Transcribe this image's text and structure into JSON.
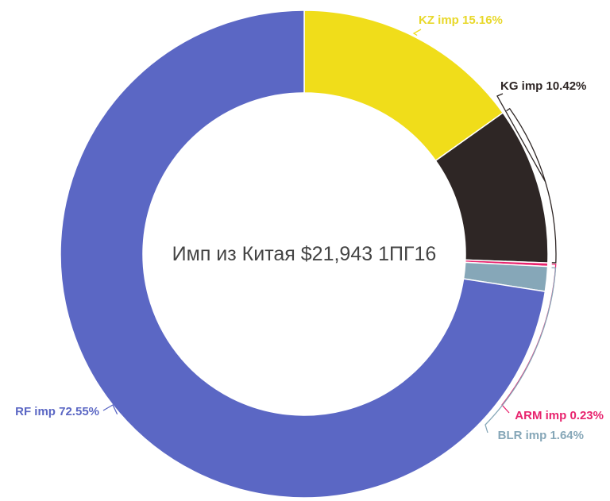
{
  "chart_data": {
    "type": "pie",
    "donut": true,
    "title": "Имп из Китая $21,943 1ПГ16",
    "slices": [
      {
        "name": "KZ imp",
        "value": 15.16,
        "label": "KZ imp 15.16%",
        "color": "#f0dd1a",
        "label_color": "#e8d82a"
      },
      {
        "name": "KG imp",
        "value": 10.42,
        "label": "KG imp 10.42%",
        "color": "#2e2625",
        "label_color": "#2e2625"
      },
      {
        "name": "ARM imp",
        "value": 0.23,
        "label": "ARM imp 0.23%",
        "color": "#e8246e",
        "label_color": "#e8246e"
      },
      {
        "name": "BLR imp",
        "value": 1.64,
        "label": "BLR imp 1.64%",
        "color": "#86a7b8",
        "label_color": "#86a7b8"
      },
      {
        "name": "RF imp",
        "value": 72.55,
        "label": "RF imp 72.55%",
        "color": "#5b67c4",
        "label_color": "#5b67c4"
      }
    ]
  }
}
